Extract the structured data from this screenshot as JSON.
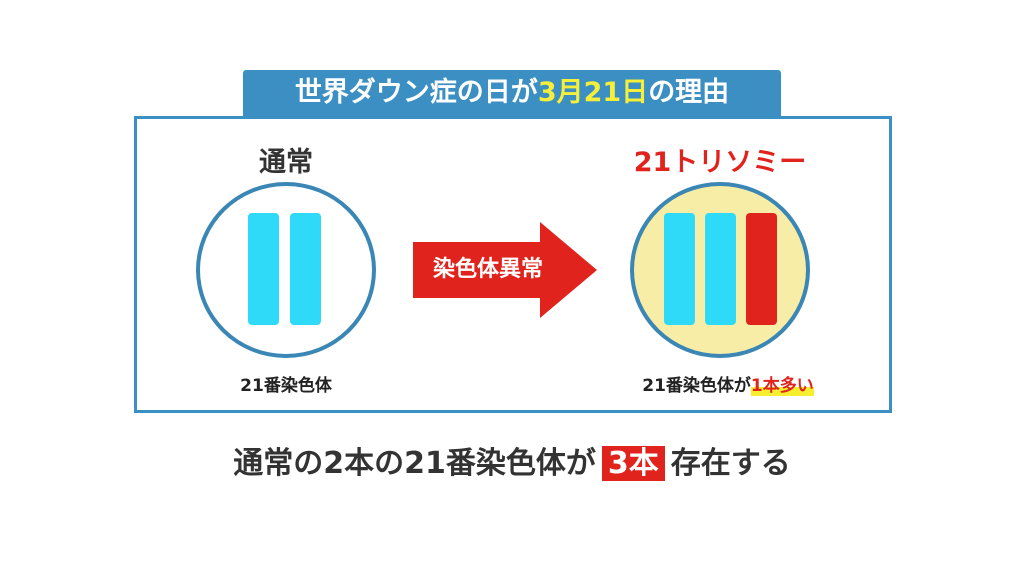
{
  "title": {
    "before": "世界ダウン症の日が",
    "highlight": "3月21日",
    "after": "の理由"
  },
  "normal": {
    "heading": "通常",
    "label": "21番染色体"
  },
  "arrow": {
    "label": "染色体異常"
  },
  "trisomy": {
    "heading": "21トリソミー",
    "label": "21番染色体が",
    "label_highlight": "1本多い"
  },
  "summary": {
    "before": "通常の2本の21番染色体が",
    "highlight": "3本",
    "after": "存在する"
  },
  "colors": {
    "blue": "#3b8fc2",
    "cyan": "#2fd9f8",
    "red": "#e0231d",
    "yellow": "#f8eda6"
  }
}
